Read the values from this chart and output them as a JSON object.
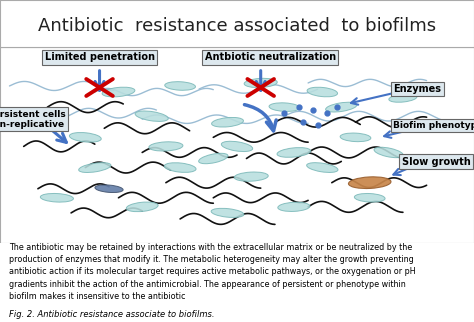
{
  "title": "Antibiotic  resistance associated  to biofilms",
  "title_fontsize": 13,
  "bg_color": "#ffffff",
  "diagram_bg": "#f0f5fa",
  "caption": "The antibiotic may be retained by interactions with the extracellular matrix or be neutralized by the\nproduction of enzymes that modify it. The metabolic heterogeneity may alter the growth preventing\nantibiotic action if its molecular target requires active metabolic pathways, or the oxygenation or pH\ngradients inhibit the action of the antimicrobial. The appearance of persistent or phenotype within\nbiofilm makes it insensitive to the antibiotic",
  "fig_label": "Fig. 2. Antibiotic resistance associate to biofilms.",
  "label_limited": "Limited penetration",
  "label_antibiotic": "Antbiotic neutralization",
  "label_persistent": "Persistent cells\nnon-replicative",
  "label_enzymes": "Enzymes",
  "label_biofim": "Biofim phenotype",
  "label_slow": "Slow growth",
  "teal_light": "#b8dede",
  "teal_edge": "#7ab8b8",
  "brown_color": "#c8864a",
  "brown_edge": "#9a6030",
  "blue_arrow": "#4472c4",
  "blue_light": "#6090d0",
  "red_x": "#cc0000",
  "squiggle_color": "#111111",
  "box_face": "#dde8ee",
  "box_edge": "#666666",
  "border_color": "#aaaaaa"
}
